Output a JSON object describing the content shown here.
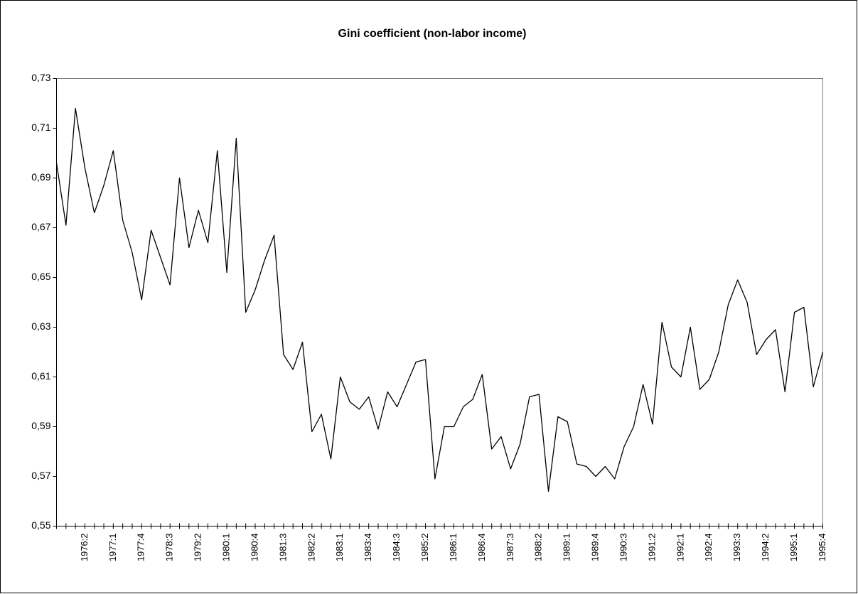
{
  "chart_data": {
    "type": "line",
    "title": "Gini coefficient (non-labor income)",
    "categories": [
      null,
      null,
      null,
      "1976:2",
      null,
      null,
      "1977:1",
      null,
      null,
      "1977:4",
      null,
      null,
      "1978:3",
      null,
      null,
      "1979:2",
      null,
      null,
      "1980:1",
      null,
      null,
      "1980:4",
      null,
      null,
      "1981:3",
      null,
      null,
      "1982:2",
      null,
      null,
      "1983:1",
      null,
      null,
      "1983:4",
      null,
      null,
      "1984:3",
      null,
      null,
      "1985:2",
      null,
      null,
      "1986:1",
      null,
      null,
      "1986:4",
      null,
      null,
      "1987:3",
      null,
      null,
      "1988:2",
      null,
      null,
      "1989:1",
      null,
      null,
      "1989:4",
      null,
      null,
      "1990:3",
      null,
      null,
      "1991:2",
      null,
      null,
      "1992:1",
      null,
      null,
      "1992:4",
      null,
      null,
      "1993:3",
      null,
      null,
      "1994:2",
      null,
      null,
      "1995:1",
      null,
      null,
      "1995:4"
    ],
    "values": [
      0.696,
      0.671,
      0.718,
      0.694,
      0.676,
      0.687,
      0.701,
      0.673,
      0.66,
      0.641,
      0.669,
      0.658,
      0.647,
      0.69,
      0.662,
      0.677,
      0.664,
      0.701,
      0.652,
      0.706,
      0.636,
      0.645,
      0.657,
      0.667,
      0.619,
      0.613,
      0.624,
      0.588,
      0.595,
      0.577,
      0.61,
      0.6,
      0.597,
      0.602,
      0.589,
      0.604,
      0.598,
      0.607,
      0.616,
      0.617,
      0.569,
      0.59,
      0.59,
      0.598,
      0.601,
      0.611,
      0.581,
      0.586,
      0.573,
      0.583,
      0.602,
      0.603,
      0.564,
      0.594,
      0.592,
      0.575,
      0.574,
      0.57,
      0.574,
      0.569,
      0.582,
      0.59,
      0.607,
      0.591,
      0.632,
      0.614,
      0.61,
      0.63,
      0.605,
      0.609,
      0.62,
      0.639,
      0.649,
      0.64,
      0.619,
      0.625,
      0.629,
      0.604,
      0.636,
      0.638,
      0.606,
      0.62
    ],
    "color": "#000000",
    "ylim": [
      0.55,
      0.73
    ],
    "yticks": [
      {
        "value": 0.55,
        "label": "0,55"
      },
      {
        "value": 0.57,
        "label": "0,57"
      },
      {
        "value": 0.59,
        "label": "0,59"
      },
      {
        "value": 0.61,
        "label": "0,61"
      },
      {
        "value": 0.63,
        "label": "0,63"
      },
      {
        "value": 0.65,
        "label": "0,65"
      },
      {
        "value": 0.67,
        "label": "0,67"
      },
      {
        "value": 0.69,
        "label": "0,69"
      },
      {
        "value": 0.71,
        "label": "0,71"
      },
      {
        "value": 0.73,
        "label": "0,73"
      }
    ],
    "grid": false
  }
}
